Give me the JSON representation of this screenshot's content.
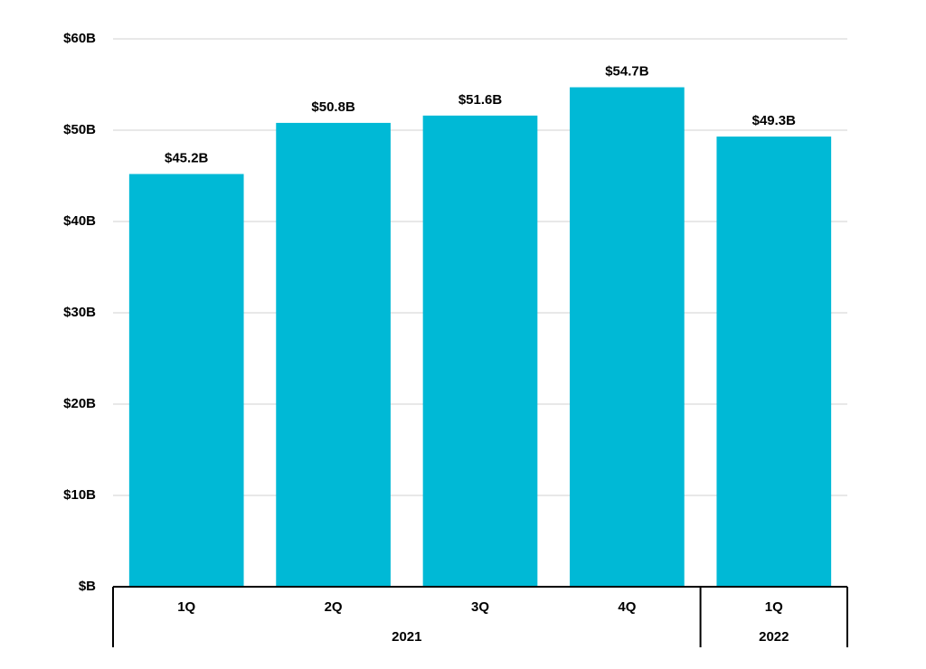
{
  "chart_data": {
    "type": "bar",
    "categories": [
      "1Q",
      "2Q",
      "3Q",
      "4Q",
      "1Q"
    ],
    "values": [
      45.2,
      50.8,
      51.6,
      54.7,
      49.3
    ],
    "value_labels": [
      "$45.2B",
      "$50.8B",
      "$51.6B",
      "$54.7B",
      "$49.3B"
    ],
    "groups": [
      {
        "label": "2021",
        "span": 4
      },
      {
        "label": "2022",
        "span": 1
      }
    ],
    "color": "#00b9d6",
    "ylim": [
      0,
      60
    ],
    "yticks": [
      {
        "value": 0,
        "label": "$B"
      },
      {
        "value": 10,
        "label": "$10B"
      },
      {
        "value": 20,
        "label": "$20B"
      },
      {
        "value": 30,
        "label": "$30B"
      },
      {
        "value": 40,
        "label": "$40B"
      },
      {
        "value": 50,
        "label": "$50B"
      },
      {
        "value": 60,
        "label": "$60B"
      }
    ],
    "grid": true
  }
}
